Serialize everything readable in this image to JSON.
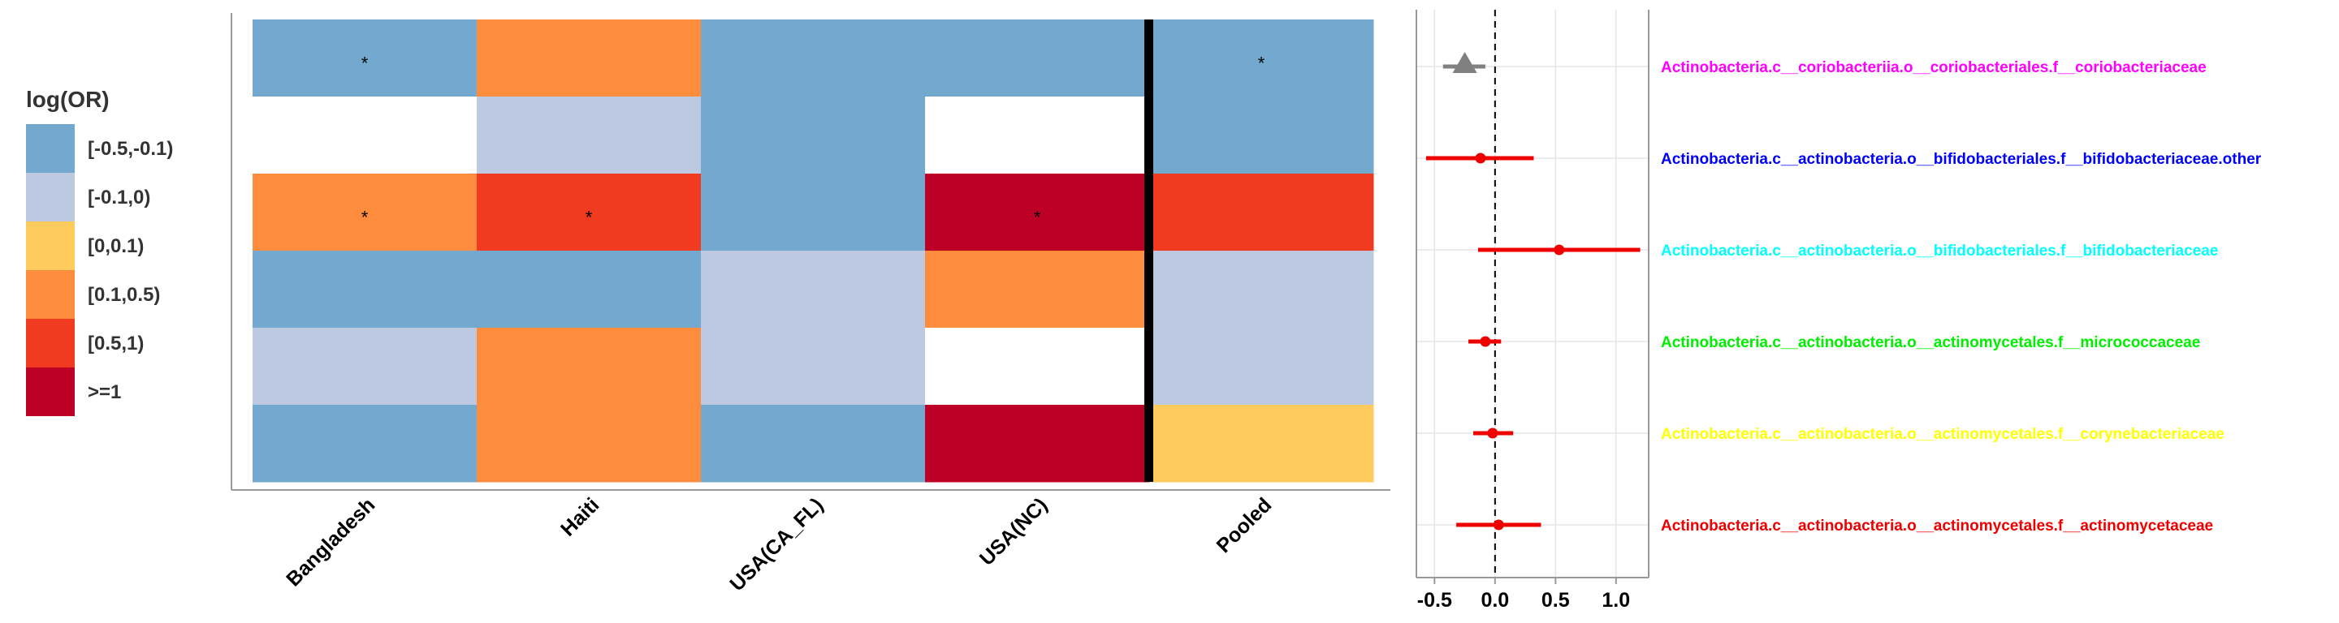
{
  "chart_data": [
    {
      "type": "heatmap",
      "columns": [
        "Bangladesh",
        "Haiti",
        "USA(CA_FL)",
        "USA(NC)",
        "Pooled"
      ],
      "legend": {
        "title": "log(OR)",
        "position": "left",
        "bins": [
          {
            "label": "[-0.5,-0.1)",
            "color": "#74a9cf"
          },
          {
            "label": "[-0.1,0)",
            "color": "#bdc9e1"
          },
          {
            "label": "[0,0.1)",
            "color": "#fecc5c"
          },
          {
            "label": "[0.1,0.5)",
            "color": "#fd8d3c"
          },
          {
            "label": "[0.5,1)",
            "color": "#f03b20"
          },
          {
            "label": ">=1",
            "color": "#bd0026"
          }
        ]
      },
      "missing_color": "#ffffff",
      "separator_before_column": "Pooled",
      "cells": [
        [
          "[-0.5,-0.1)",
          "[0.1,0.5)",
          "[-0.5,-0.1)",
          "[-0.5,-0.1)",
          "[-0.5,-0.1)"
        ],
        [
          null,
          "[-0.1,0)",
          "[-0.5,-0.1)",
          null,
          "[-0.5,-0.1)"
        ],
        [
          "[0.1,0.5)",
          "[0.5,1)",
          "[-0.5,-0.1)",
          ">=1",
          "[0.5,1)"
        ],
        [
          "[-0.5,-0.1)",
          "[-0.5,-0.1)",
          "[-0.1,0)",
          "[0.1,0.5)",
          "[-0.1,0)"
        ],
        [
          "[-0.1,0)",
          "[0.1,0.5)",
          "[-0.1,0)",
          null,
          "[-0.1,0)"
        ],
        [
          "[-0.5,-0.1)",
          "[0.1,0.5)",
          "[-0.5,-0.1)",
          ">=1",
          "[0,0.1)"
        ]
      ],
      "significance": [
        [
          true,
          false,
          false,
          false,
          true
        ],
        [
          false,
          false,
          false,
          false,
          false
        ],
        [
          true,
          true,
          false,
          true,
          false
        ],
        [
          false,
          false,
          false,
          false,
          false
        ],
        [
          false,
          false,
          false,
          false,
          false
        ],
        [
          false,
          false,
          false,
          false,
          false
        ]
      ],
      "significance_marker": "*"
    },
    {
      "type": "scatter",
      "subtype": "forest",
      "xlim": [
        -0.65,
        1.27
      ],
      "xticks": [
        -0.5,
        0.0,
        0.5,
        1.0
      ],
      "xtick_labels": [
        "-0.5",
        "0.0",
        "0.5",
        "1.0"
      ],
      "reference_line": 0,
      "grid": true,
      "rows": [
        {
          "label": "Actinobacteria.c__coriobacteriia.o__coriobacteriales.f__coriobacteriaceae",
          "label_color": "#ff00ff",
          "estimate": -0.25,
          "low": -0.43,
          "high": -0.08,
          "marker": "triangle",
          "marker_color": "#808080"
        },
        {
          "label": "Actinobacteria.c__actinobacteria.o__bifidobacteriales.f__bifidobacteriaceae.other",
          "label_color": "#0000ff",
          "estimate": -0.12,
          "low": -0.57,
          "high": 0.32,
          "marker": "circle",
          "marker_color": "#ee0000"
        },
        {
          "label": "Actinobacteria.c__actinobacteria.o__bifidobacteriales.f__bifidobacteriaceae",
          "label_color": "#00ffff",
          "estimate": 0.53,
          "low": -0.14,
          "high": 1.2,
          "marker": "circle",
          "marker_color": "#ee0000"
        },
        {
          "label": "Actinobacteria.c__actinobacteria.o__actinomycetales.f__micrococcaceae",
          "label_color": "#00ee00",
          "estimate": -0.08,
          "low": -0.22,
          "high": 0.05,
          "marker": "circle",
          "marker_color": "#ee0000"
        },
        {
          "label": "Actinobacteria.c__actinobacteria.o__actinomycetales.f__corynebacteriaceae",
          "label_color": "#ffff00",
          "estimate": -0.02,
          "low": -0.18,
          "high": 0.15,
          "marker": "circle",
          "marker_color": "#ee0000"
        },
        {
          "label": "Actinobacteria.c__actinobacteria.o__actinomycetales.f__actinomycetaceae",
          "label_color": "#ee0000",
          "estimate": 0.03,
          "low": -0.32,
          "high": 0.38,
          "marker": "circle",
          "marker_color": "#ee0000"
        }
      ]
    }
  ]
}
